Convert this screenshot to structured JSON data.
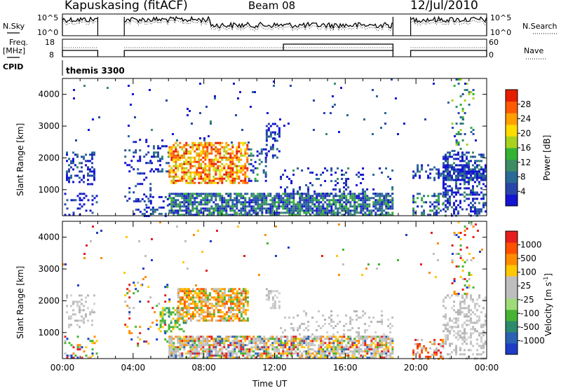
{
  "header": {
    "station": "Kapuskasing (fitACF)",
    "beam": "Beam 08",
    "date": "12/Jul/2010"
  },
  "summary_labels": {
    "nsky": "N.Sky",
    "nsky_hi": "10^5",
    "nsky_lo": "10^0",
    "nsearch": "N.Search",
    "nsearch_hi": "10^5",
    "nsearch_lo": "10^0",
    "freq": "Freq.",
    "freq_unit": "[MHz]",
    "freq_hi": "18",
    "freq_lo": "8",
    "nave": "Nave",
    "nave_hi": "60",
    "nave_lo": "0",
    "cpid": "CPID",
    "cpid_value": "themis 3300"
  },
  "chart_data": [
    {
      "type": "heatmap",
      "name": "power-panel",
      "ylabel": "Slant Range [km]",
      "xlabel": "",
      "yticks": [
        1000,
        2000,
        3000,
        4000
      ],
      "ylim": [
        180,
        4500
      ],
      "xlim": [
        0,
        24
      ],
      "colorbar": {
        "label": "Power [dB]",
        "ticks": [
          "28",
          "24",
          "20",
          "16",
          "12",
          "8",
          "4"
        ],
        "colors": [
          "#1414d2",
          "#2846aa",
          "#2a6a96",
          "#3c8c64",
          "#32b432",
          "#a8d21e",
          "#ffdc00",
          "#ffa000",
          "#ff5a00",
          "#e61e00"
        ]
      },
      "regions": [
        {
          "t0": 0.1,
          "t1": 1.9,
          "r0": 180,
          "r1": 900,
          "density": 0.22,
          "level": 0.05
        },
        {
          "t0": 0.2,
          "t1": 1.8,
          "r0": 1200,
          "r1": 2200,
          "density": 0.35,
          "level": 0.1
        },
        {
          "t0": 3.5,
          "t1": 5.0,
          "r0": 500,
          "r1": 2600,
          "density": 0.12,
          "level": 0.08
        },
        {
          "t0": 5.0,
          "t1": 6.0,
          "r0": 1600,
          "r1": 2400,
          "density": 0.35,
          "level": 0.1
        },
        {
          "t0": 6.0,
          "t1": 10.5,
          "r0": 1200,
          "r1": 2500,
          "density": 0.65,
          "level": 0.75
        },
        {
          "t0": 10.5,
          "t1": 11.5,
          "r0": 1300,
          "r1": 2300,
          "density": 0.3,
          "level": 0.2
        },
        {
          "t0": 11.5,
          "t1": 12.3,
          "r0": 2000,
          "r1": 3100,
          "density": 0.4,
          "level": 0.12
        },
        {
          "t0": 6.0,
          "t1": 18.7,
          "r0": 180,
          "r1": 900,
          "density": 0.75,
          "level": 0.25
        },
        {
          "t0": 12.3,
          "t1": 18.7,
          "r0": 900,
          "r1": 1700,
          "density": 0.15,
          "level": 0.1
        },
        {
          "t0": 4.0,
          "t1": 6.0,
          "r0": 180,
          "r1": 800,
          "density": 0.2,
          "level": 0.08
        },
        {
          "t0": 19.8,
          "t1": 21.5,
          "r0": 180,
          "r1": 900,
          "density": 0.35,
          "level": 0.25
        },
        {
          "t0": 19.8,
          "t1": 21.5,
          "r0": 1300,
          "r1": 1800,
          "density": 0.3,
          "level": 0.1
        },
        {
          "t0": 21.5,
          "t1": 23.9,
          "r0": 180,
          "r1": 2200,
          "density": 0.4,
          "level": 0.15
        },
        {
          "t0": 21.5,
          "t1": 23.9,
          "r0": 1300,
          "r1": 1800,
          "density": 0.7,
          "level": 0.1
        },
        {
          "t0": 22.0,
          "t1": 23.3,
          "r0": 2200,
          "r1": 4500,
          "density": 0.15,
          "level": 0.35
        },
        {
          "t0": 0.0,
          "t1": 24.0,
          "r0": 2500,
          "r1": 4500,
          "density": 0.012,
          "level": 0.1
        }
      ]
    },
    {
      "type": "heatmap",
      "name": "velocity-panel",
      "ylabel": "Slant Range [km]",
      "xlabel": "Time UT",
      "xticks": [
        "00:00",
        "04:00",
        "08:00",
        "12:00",
        "16:00",
        "20:00",
        "00:00"
      ],
      "yticks": [
        1000,
        2000,
        3000,
        4000
      ],
      "ylim": [
        180,
        4500
      ],
      "xlim": [
        0,
        24
      ],
      "colorbar": {
        "label": "Velocity [m s",
        "label_superscript": "-1",
        "label_close": "]",
        "ticks": [
          "1000",
          "500",
          "100",
          "25",
          "-25",
          "-100",
          "-500",
          "-1000"
        ],
        "colors": [
          "#1e3cc8",
          "#2a62b4",
          "#2c8a6e",
          "#46b432",
          "#9edc78",
          "#bebebe",
          "#bebebe",
          "#ffc800",
          "#ff8c00",
          "#ff5000",
          "#e61e1e"
        ]
      },
      "regions": [
        {
          "t0": 0.1,
          "t1": 1.9,
          "r0": 180,
          "r1": 900,
          "density": 0.25,
          "mode": "mixed"
        },
        {
          "t0": 0.2,
          "t1": 1.8,
          "r0": 1200,
          "r1": 2200,
          "density": 0.3,
          "mode": "gray"
        },
        {
          "t0": 3.5,
          "t1": 6.0,
          "r0": 500,
          "r1": 2600,
          "density": 0.12,
          "mode": "mixed"
        },
        {
          "t0": 5.5,
          "t1": 7.0,
          "r0": 1050,
          "r1": 1800,
          "density": 0.45,
          "mode": "green"
        },
        {
          "t0": 6.5,
          "t1": 10.5,
          "r0": 1400,
          "r1": 2400,
          "density": 0.7,
          "mode": "orange"
        },
        {
          "t0": 11.5,
          "t1": 12.3,
          "r0": 1800,
          "r1": 2400,
          "density": 0.35,
          "mode": "gray"
        },
        {
          "t0": 6.0,
          "t1": 18.7,
          "r0": 180,
          "r1": 900,
          "density": 0.75,
          "mode": "graymix"
        },
        {
          "t0": 12.3,
          "t1": 18.7,
          "r0": 900,
          "r1": 1700,
          "density": 0.15,
          "mode": "gray"
        },
        {
          "t0": 19.8,
          "t1": 21.5,
          "r0": 180,
          "r1": 800,
          "density": 0.35,
          "mode": "red"
        },
        {
          "t0": 21.5,
          "t1": 23.9,
          "r0": 180,
          "r1": 2200,
          "density": 0.35,
          "mode": "gray"
        },
        {
          "t0": 22.0,
          "t1": 23.3,
          "r0": 2200,
          "r1": 4500,
          "density": 0.15,
          "mode": "mixed"
        },
        {
          "t0": 0.0,
          "t1": 24.0,
          "r0": 2500,
          "r1": 4500,
          "density": 0.012,
          "mode": "mixed"
        }
      ]
    }
  ],
  "summary_data": {
    "scan_periods": [
      [
        0.0,
        2.0
      ],
      [
        3.5,
        18.7
      ],
      [
        19.7,
        24.0
      ]
    ],
    "freq_level": 0.35,
    "freq_high_periods": [
      [
        12.5,
        18.7
      ]
    ],
    "nave_level": 0.45
  }
}
